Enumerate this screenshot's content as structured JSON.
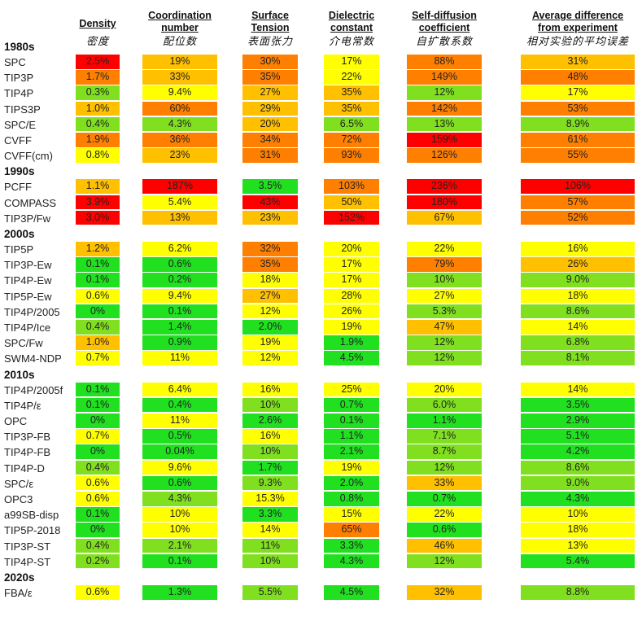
{
  "chart_data": {
    "type": "table",
    "title": "Average difference from experiment",
    "columns": [
      {
        "key": "density",
        "label": "Density",
        "label_zh": "密度"
      },
      {
        "key": "coordination",
        "label": "Coordination number",
        "label_zh": "配位数"
      },
      {
        "key": "surface_tension",
        "label": "Surface Tension",
        "label_zh": "表面张力"
      },
      {
        "key": "dielectric",
        "label": "Dielectric constant",
        "label_zh": "介电常数"
      },
      {
        "key": "self_diffusion",
        "label": "Self-diffusion coefficient",
        "label_zh": "自扩散系数"
      },
      {
        "key": "avg_diff",
        "label": "Average difference from experiment",
        "label_zh": "相对实验的平均误差"
      }
    ],
    "header_lines": [
      [
        "Density"
      ],
      [
        "Coordination",
        "number"
      ],
      [
        "Surface",
        "Tension"
      ],
      [
        "Dielectric",
        "constant"
      ],
      [
        "Self-diffusion",
        "coefficient"
      ],
      [
        "Average difference",
        "from experiment"
      ]
    ],
    "color_scale": {
      "stops": [
        "#20e020",
        "#80e020",
        "#ffff00",
        "#ffc000",
        "#ff8000",
        "#ff0000"
      ],
      "description": "green = small difference, yellow = moderate, red = large difference"
    },
    "groups": [
      {
        "era": "1980s",
        "rows": [
          {
            "model": "SPC",
            "values": [
              "2.5%",
              "19%",
              "30%",
              "17%",
              "88%",
              "31%"
            ]
          },
          {
            "model": "TIP3P",
            "values": [
              "1.7%",
              "33%",
              "35%",
              "22%",
              "149%",
              "48%"
            ]
          },
          {
            "model": "TIP4P",
            "values": [
              "0.3%",
              "9.4%",
              "27%",
              "35%",
              "12%",
              "17%"
            ]
          },
          {
            "model": "TIPS3P",
            "values": [
              "1.0%",
              "60%",
              "29%",
              "35%",
              "142%",
              "53%"
            ]
          },
          {
            "model": "SPC/E",
            "values": [
              "0.4%",
              "4.3%",
              "20%",
              "6.5%",
              "13%",
              "8.9%"
            ]
          },
          {
            "model": "CVFF",
            "values": [
              "1.9%",
              "36%",
              "34%",
              "72%",
              "159%",
              "61%"
            ]
          },
          {
            "model": "CVFF(cm)",
            "values": [
              "0.8%",
              "23%",
              "31%",
              "93%",
              "126%",
              "55%"
            ]
          }
        ]
      },
      {
        "era": "1990s",
        "rows": [
          {
            "model": "PCFF",
            "values": [
              "1.1%",
              "187%",
              "3.5%",
              "103%",
              "236%",
              "106%"
            ]
          },
          {
            "model": "COMPASS",
            "values": [
              "3.9%",
              "5.4%",
              "43%",
              "50%",
              "180%",
              "57%"
            ]
          },
          {
            "model": "TIP3P/Fw",
            "values": [
              "3.0%",
              "13%",
              "23%",
              "152%",
              "67%",
              "52%"
            ]
          }
        ]
      },
      {
        "era": "2000s",
        "rows": [
          {
            "model": "TIP5P",
            "values": [
              "1.2%",
              "6.2%",
              "32%",
              "20%",
              "22%",
              "16%"
            ]
          },
          {
            "model": "TIP3P-Ew",
            "values": [
              "0.1%",
              "0.6%",
              "35%",
              "17%",
              "79%",
              "26%"
            ]
          },
          {
            "model": "TIP4P-Ew",
            "values": [
              "0.1%",
              "0.2%",
              "18%",
              "17%",
              "10%",
              "9.0%"
            ]
          },
          {
            "model": "TIP5P-Ew",
            "values": [
              "0.6%",
              "9.4%",
              "27%",
              "28%",
              "27%",
              "18%"
            ]
          },
          {
            "model": "TIP4P/2005",
            "values": [
              "0%",
              "0.1%",
              "12%",
              "26%",
              "5.3%",
              "8.6%"
            ]
          },
          {
            "model": "TIP4P/Ice",
            "values": [
              "0.4%",
              "1.4%",
              "2.0%",
              "19%",
              "47%",
              "14%"
            ]
          },
          {
            "model": "SPC/Fw",
            "values": [
              "1.0%",
              "0.9%",
              "19%",
              "1.9%",
              "12%",
              "6.8%"
            ]
          },
          {
            "model": "SWM4-NDP",
            "values": [
              "0.7%",
              "11%",
              "12%",
              "4.5%",
              "12%",
              "8.1%"
            ]
          }
        ]
      },
      {
        "era": "2010s",
        "rows": [
          {
            "model": "TIP4P/2005f",
            "values": [
              "0.1%",
              "6.4%",
              "16%",
              "25%",
              "20%",
              "14%"
            ]
          },
          {
            "model": "TIP4P/ε",
            "values": [
              "0.1%",
              "0.4%",
              "10%",
              "0.7%",
              "6.0%",
              "3.5%"
            ]
          },
          {
            "model": "OPC",
            "values": [
              "0%",
              "11%",
              "2.6%",
              "0.1%",
              "1.1%",
              "2.9%"
            ]
          },
          {
            "model": "TIP3P-FB",
            "values": [
              "0.7%",
              "0.5%",
              "16%",
              "1.1%",
              "7.1%",
              "5.1%"
            ]
          },
          {
            "model": "TIP4P-FB",
            "values": [
              "0%",
              "0.04%",
              "10%",
              "2.1%",
              "8.7%",
              "4.2%"
            ]
          },
          {
            "model": "TIP4P-D",
            "values": [
              "0.4%",
              "9.6%",
              "1.7%",
              "19%",
              "12%",
              "8.6%"
            ]
          },
          {
            "model": "SPC/ε",
            "values": [
              "0.6%",
              "0.6%",
              "9.3%",
              "2.0%",
              "33%",
              "9.0%"
            ]
          },
          {
            "model": "OPC3",
            "values": [
              "0.6%",
              "4.3%",
              "15.3%",
              "0.8%",
              "0.7%",
              "4.3%"
            ]
          },
          {
            "model": "a99SB-disp",
            "values": [
              "0.1%",
              "10%",
              "3.3%",
              "15%",
              "22%",
              "10%"
            ]
          },
          {
            "model": "TIP5P-2018",
            "values": [
              "0%",
              "10%",
              "14%",
              "65%",
              "0.6%",
              "18%"
            ]
          },
          {
            "model": "TIP3P-ST",
            "values": [
              "0.4%",
              "2.1%",
              "11%",
              "3.3%",
              "46%",
              "13%"
            ]
          },
          {
            "model": "TIP4P-ST",
            "values": [
              "0.2%",
              "0.1%",
              "10%",
              "4.3%",
              "12%",
              "5.4%"
            ]
          }
        ]
      },
      {
        "era": "2020s",
        "rows": [
          {
            "model": "FBA/ε",
            "values": [
              "0.6%",
              "1.3%",
              "5.5%",
              "4.5%",
              "32%",
              "8.8%"
            ]
          }
        ]
      }
    ]
  }
}
